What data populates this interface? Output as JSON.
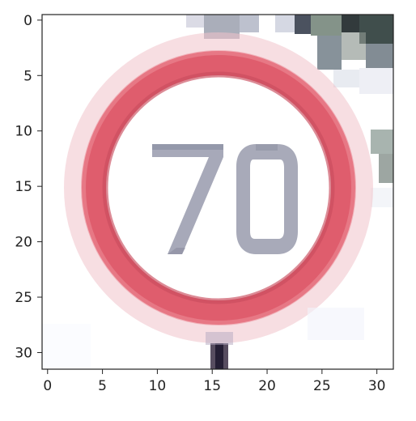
{
  "figure": {
    "x_ticks": [
      "0",
      "5",
      "10",
      "15",
      "20",
      "25",
      "30"
    ],
    "y_ticks": [
      "0",
      "5",
      "10",
      "15",
      "20",
      "25",
      "30"
    ],
    "image_size": [
      32,
      32
    ]
  },
  "image": {
    "subject": "speed limit sign",
    "sign_text": "70",
    "colors": {
      "ring": "#df5d6d",
      "ring_dark": "#c94d5e",
      "digits": "#a8a9b8",
      "digits_dark": "#8e90a3",
      "background": "#ffffff"
    }
  }
}
